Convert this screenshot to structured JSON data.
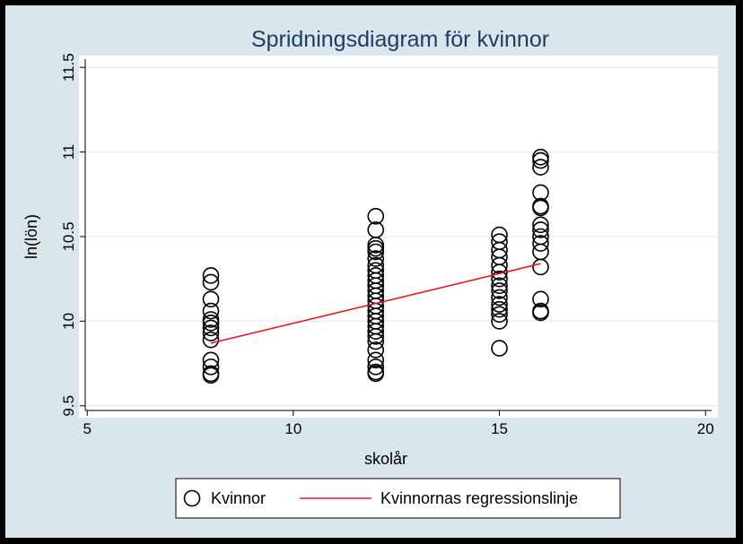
{
  "chart_data": {
    "type": "scatter",
    "title": "Spridningsdiagram för kvinnor",
    "xlabel": "skolår",
    "ylabel": "ln(lön)",
    "xlim": [
      4.8,
      20.3
    ],
    "ylim": [
      9.43,
      11.57
    ],
    "xticks": [
      5,
      10,
      15,
      20
    ],
    "yticks": [
      9.5,
      10,
      10.5,
      11,
      11.5
    ],
    "xtick_labels": [
      "5",
      "10",
      "15",
      "20"
    ],
    "ytick_labels": [
      "9.5",
      "10",
      "10.5",
      "11",
      "11.5"
    ],
    "grid": true,
    "legend_position": "bottom",
    "series": [
      {
        "name": "Kvinnor",
        "kind": "scatter",
        "marker": "hollow-circle",
        "color": "#000000",
        "points": [
          [
            8,
            10.27
          ],
          [
            8,
            10.23
          ],
          [
            8,
            10.13
          ],
          [
            8,
            10.06
          ],
          [
            8,
            10.01
          ],
          [
            8,
            9.99
          ],
          [
            8,
            9.96
          ],
          [
            8,
            9.93
          ],
          [
            8,
            9.89
          ],
          [
            8,
            9.77
          ],
          [
            8,
            9.73
          ],
          [
            8,
            9.69
          ],
          [
            8,
            9.68
          ],
          [
            12,
            10.62
          ],
          [
            12,
            10.54
          ],
          [
            12,
            10.45
          ],
          [
            12,
            10.43
          ],
          [
            12,
            10.41
          ],
          [
            12,
            10.37
          ],
          [
            12,
            10.33
          ],
          [
            12,
            10.3
          ],
          [
            12,
            10.27
          ],
          [
            12,
            10.24
          ],
          [
            12,
            10.21
          ],
          [
            12,
            10.18
          ],
          [
            12,
            10.15
          ],
          [
            12,
            10.12
          ],
          [
            12,
            10.09
          ],
          [
            12,
            10.06
          ],
          [
            12,
            10.03
          ],
          [
            12,
            10.0
          ],
          [
            12,
            9.97
          ],
          [
            12,
            9.94
          ],
          [
            12,
            9.91
          ],
          [
            12,
            9.88
          ],
          [
            12,
            9.83
          ],
          [
            12,
            9.77
          ],
          [
            12,
            9.73
          ],
          [
            12,
            9.7
          ],
          [
            12,
            9.69
          ],
          [
            15,
            10.51
          ],
          [
            15,
            10.47
          ],
          [
            15,
            10.42
          ],
          [
            15,
            10.38
          ],
          [
            15,
            10.33
          ],
          [
            15,
            10.29
          ],
          [
            15,
            10.25
          ],
          [
            15,
            10.21
          ],
          [
            15,
            10.18
          ],
          [
            15,
            10.14
          ],
          [
            15,
            10.1
          ],
          [
            15,
            10.07
          ],
          [
            15,
            10.04
          ],
          [
            15,
            10.0
          ],
          [
            15,
            9.84
          ],
          [
            16,
            10.97
          ],
          [
            16,
            10.95
          ],
          [
            16,
            10.91
          ],
          [
            16,
            10.76
          ],
          [
            16,
            10.68
          ],
          [
            16,
            10.67
          ],
          [
            16,
            10.57
          ],
          [
            16,
            10.54
          ],
          [
            16,
            10.5
          ],
          [
            16,
            10.46
          ],
          [
            16,
            10.41
          ],
          [
            16,
            10.32
          ],
          [
            16,
            10.13
          ],
          [
            16,
            10.06
          ],
          [
            16,
            10.05
          ]
        ]
      },
      {
        "name": "Kvinnornas regressionslinje",
        "kind": "line",
        "color": "#e31a1c",
        "x": [
          8,
          16
        ],
        "y": [
          9.87,
          10.34
        ]
      }
    ]
  }
}
